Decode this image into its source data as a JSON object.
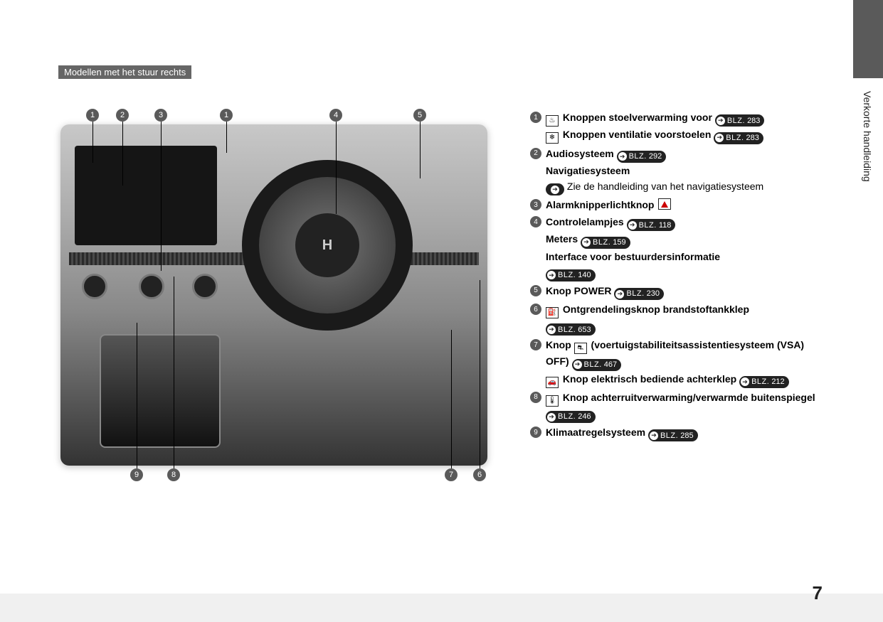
{
  "page": {
    "model_badge": "Modellen met het stuur rechts",
    "side_tab": "Verkorte handleiding",
    "page_number": "7",
    "colors": {
      "badge_bg": "#666666",
      "marker_bg": "#5a5a5a",
      "pill_bg": "#222222",
      "text": "#222222"
    }
  },
  "diagram": {
    "image_alt": "Dashboard right-hand-drive interior",
    "top_markers": [
      "1",
      "2",
      "3",
      "1",
      "4",
      "5"
    ],
    "bottom_markers": [
      "9",
      "8",
      "7",
      "6"
    ]
  },
  "legend": {
    "blz_label": "BLZ.",
    "items": [
      {
        "num": "1",
        "lines": [
          {
            "icon": "seat-heat",
            "text_b": "Knoppen stoelverwarming voor",
            "page": "283"
          },
          {
            "icon": "seat-vent",
            "text_b": "Knoppen ventilatie voorstoelen",
            "page": "283"
          }
        ]
      },
      {
        "num": "2",
        "lines": [
          {
            "text_b": "Audiosysteem",
            "page": "292"
          },
          {
            "text_b": "Navigatiesysteem"
          },
          {
            "arrow_only": true,
            "text": "Zie de handleiding van het navigatiesysteem"
          }
        ]
      },
      {
        "num": "3",
        "lines": [
          {
            "text_b": "Alarmknipperlichtknop",
            "hazard": true
          }
        ]
      },
      {
        "num": "4",
        "lines": [
          {
            "text_b": "Controlelampjes",
            "page": "118"
          },
          {
            "text_b": "Meters",
            "page": "159"
          },
          {
            "text_b": "Interface voor bestuurdersinformatie"
          },
          {
            "page": "140"
          }
        ]
      },
      {
        "num": "5",
        "lines": [
          {
            "text_b": "Knop POWER",
            "page": "230"
          }
        ]
      },
      {
        "num": "6",
        "lines": [
          {
            "icon": "fuel",
            "text_b": "Ontgrendelingsknop brandstoftankklep"
          },
          {
            "page": "653"
          }
        ]
      },
      {
        "num": "7",
        "lines": [
          {
            "text_b_pre": "Knop ",
            "icon": "vsa-off",
            "text_b": "(voertuigstabiliteitsassistentiesysteem (VSA) OFF)",
            "page": "467"
          },
          {
            "icon": "tailgate",
            "text_b": "Knop elektrisch bediende achterklep",
            "page": "212"
          }
        ]
      },
      {
        "num": "8",
        "lines": [
          {
            "icon": "rear-defrost",
            "text_b": "Knop achterruitverwarming/verwarmde buitenspiegel",
            "page": "246"
          }
        ]
      },
      {
        "num": "9",
        "lines": [
          {
            "text_b": "Klimaatregelsysteem",
            "page": "285"
          }
        ]
      }
    ]
  }
}
